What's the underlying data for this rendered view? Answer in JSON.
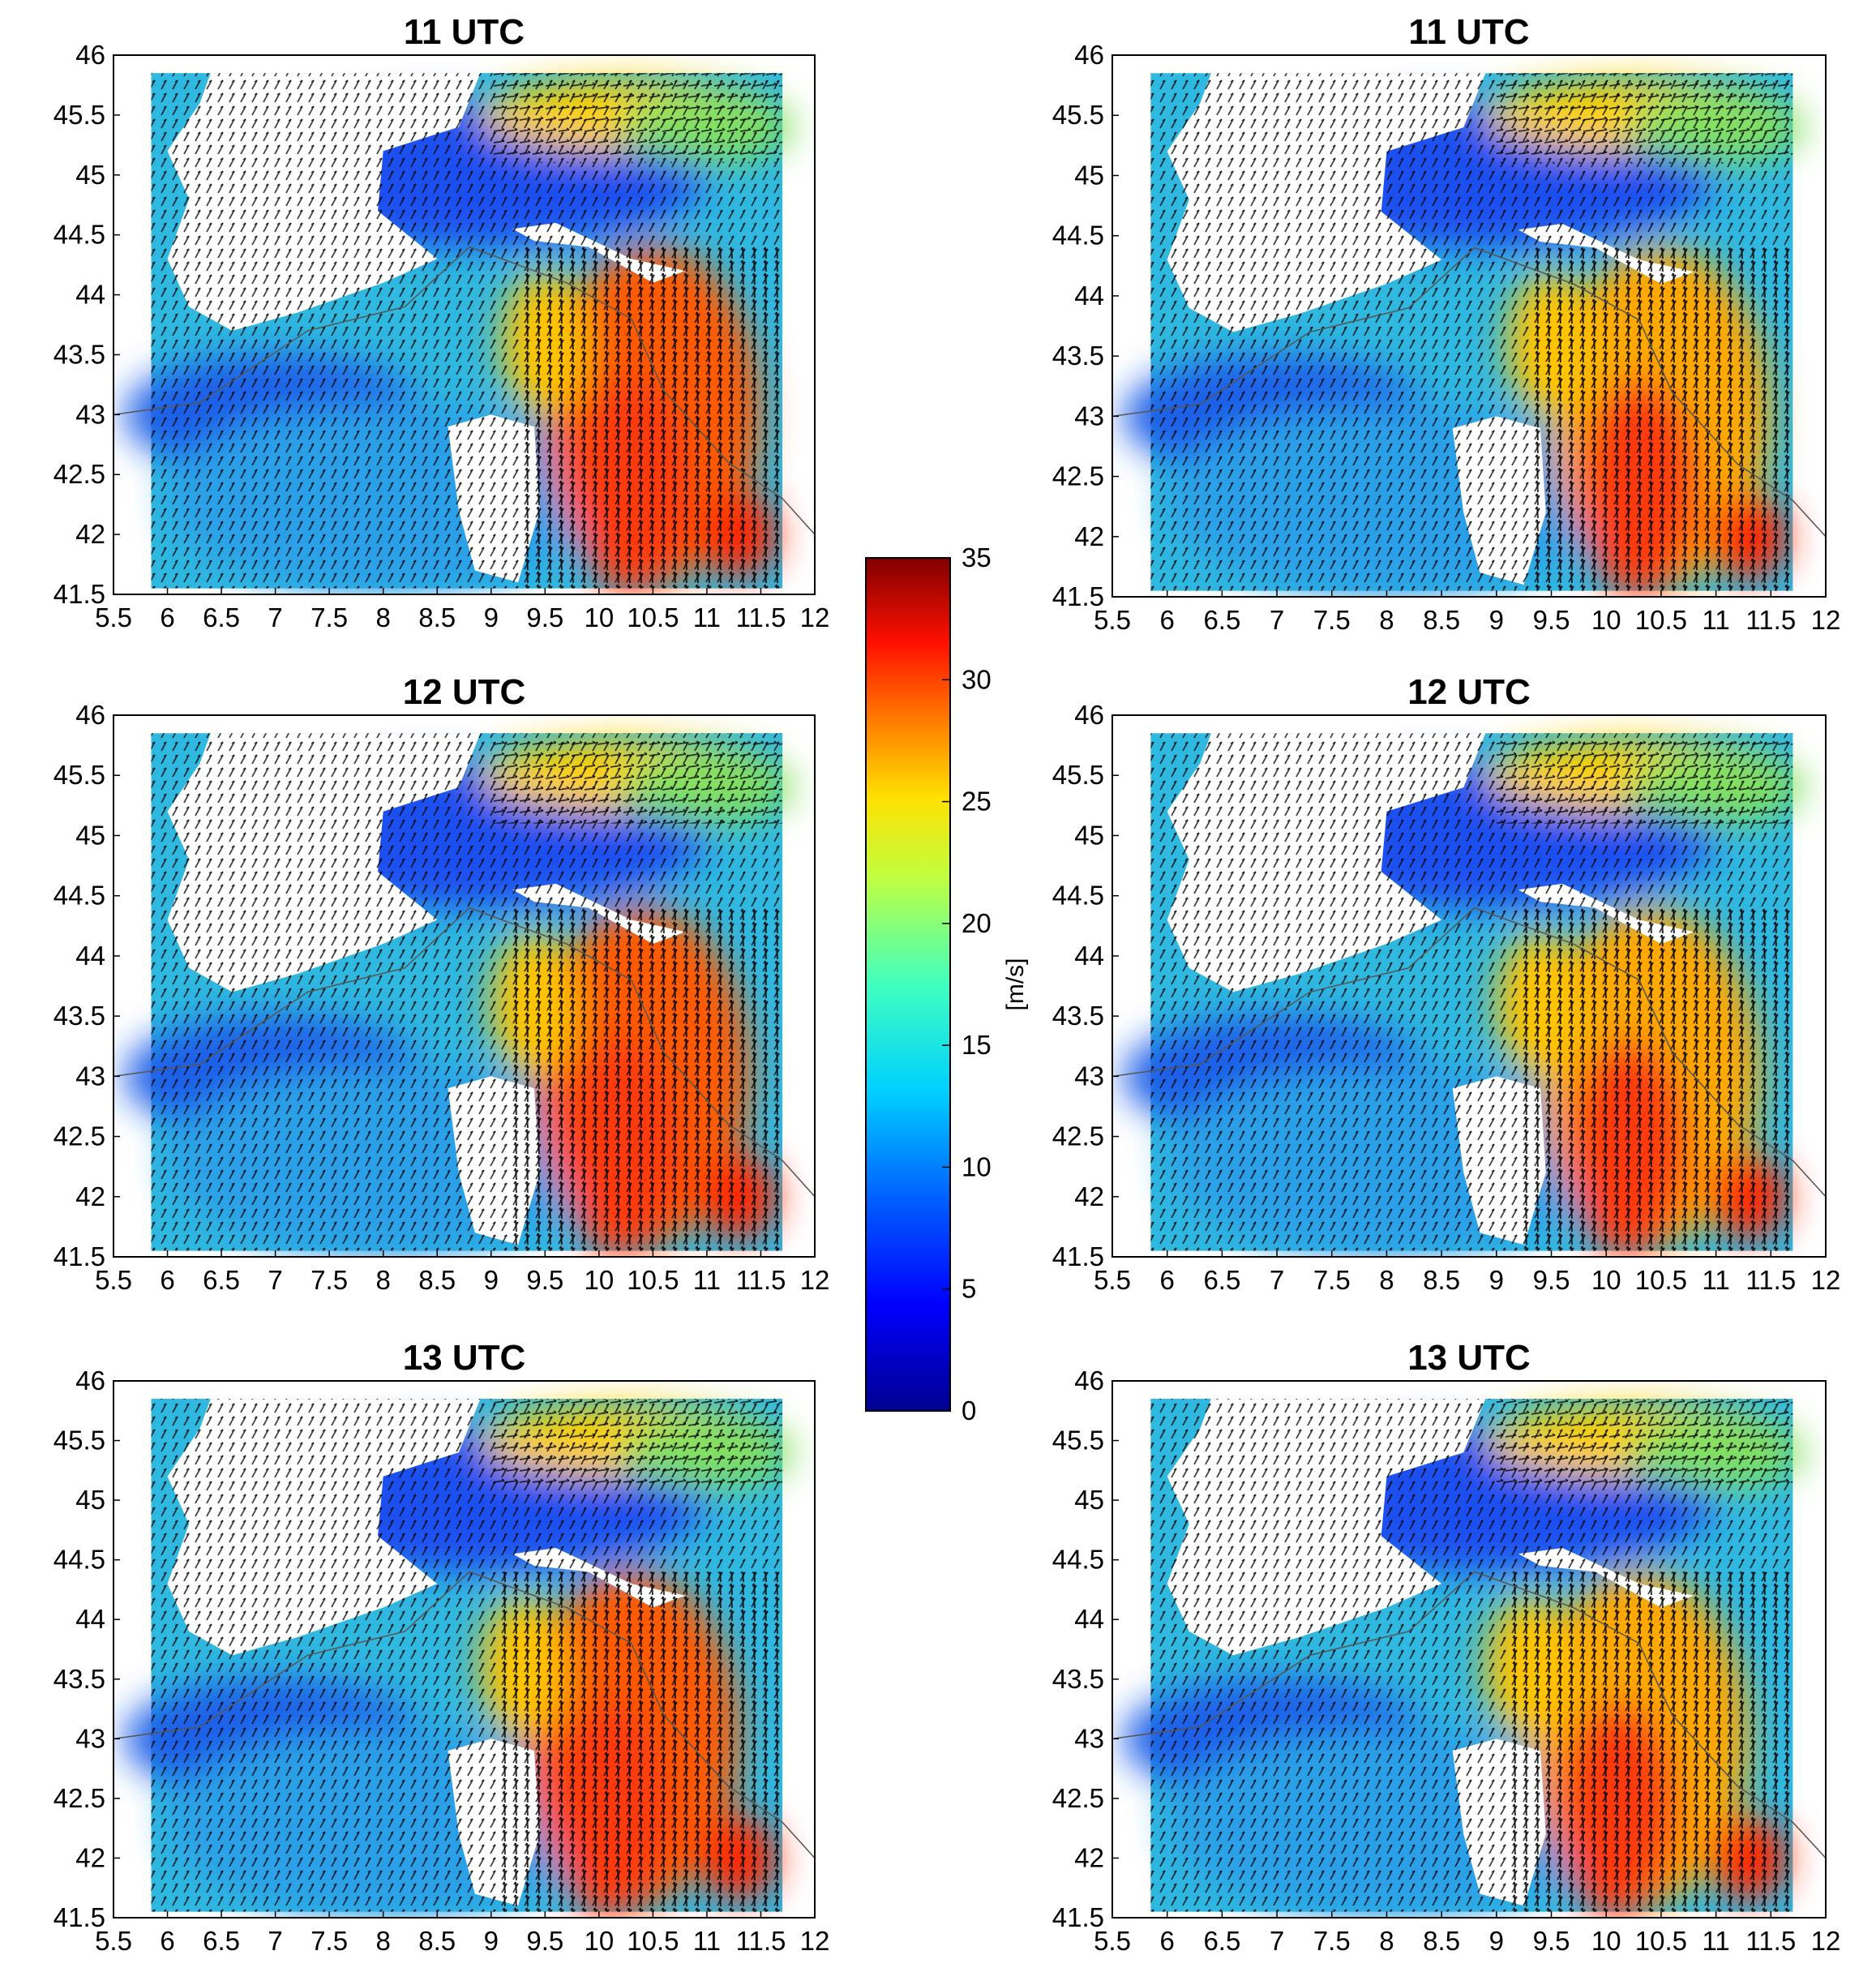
{
  "figure": {
    "colorbar_label": "[m/s]"
  },
  "chart_data": [
    {
      "type": "heatmap",
      "title": "11 UTC",
      "column": "left",
      "xlim": [
        5.5,
        12
      ],
      "ylim": [
        41.5,
        46
      ],
      "xticks": [
        "5.5",
        "6",
        "6.5",
        "7",
        "7.5",
        "8",
        "8.5",
        "9",
        "9.5",
        "10",
        "10.5",
        "11",
        "11.5",
        "12"
      ],
      "yticks": [
        "41.5",
        "42",
        "42.5",
        "43",
        "43.5",
        "44",
        "44.5",
        "45",
        "45.5",
        "46"
      ],
      "field": "wind speed with wind vectors",
      "peak_speed": 28
    },
    {
      "type": "heatmap",
      "title": "11 UTC",
      "column": "right",
      "xlim": [
        5.5,
        12
      ],
      "ylim": [
        41.5,
        46
      ],
      "xticks": [
        "5.5",
        "6",
        "6.5",
        "7",
        "7.5",
        "8",
        "8.5",
        "9",
        "9.5",
        "10",
        "10.5",
        "11",
        "11.5",
        "12"
      ],
      "yticks": [
        "41.5",
        "42",
        "42.5",
        "43",
        "43.5",
        "44",
        "44.5",
        "45",
        "45.5",
        "46"
      ],
      "field": "wind speed with wind vectors",
      "peak_speed": 27
    },
    {
      "type": "heatmap",
      "title": "12 UTC",
      "column": "left",
      "xlim": [
        5.5,
        12
      ],
      "ylim": [
        41.5,
        46
      ],
      "xticks": [
        "5.5",
        "6",
        "6.5",
        "7",
        "7.5",
        "8",
        "8.5",
        "9",
        "9.5",
        "10",
        "10.5",
        "11",
        "11.5",
        "12"
      ],
      "yticks": [
        "41.5",
        "42",
        "42.5",
        "43",
        "43.5",
        "44",
        "44.5",
        "45",
        "45.5",
        "46"
      ],
      "field": "wind speed with wind vectors",
      "peak_speed": 29
    },
    {
      "type": "heatmap",
      "title": "12 UTC",
      "column": "right",
      "xlim": [
        5.5,
        12
      ],
      "ylim": [
        41.5,
        46
      ],
      "xticks": [
        "5.5",
        "6",
        "6.5",
        "7",
        "7.5",
        "8",
        "8.5",
        "9",
        "9.5",
        "10",
        "10.5",
        "11",
        "11.5",
        "12"
      ],
      "yticks": [
        "41.5",
        "42",
        "42.5",
        "43",
        "43.5",
        "44",
        "44.5",
        "45",
        "45.5",
        "46"
      ],
      "field": "wind speed with wind vectors",
      "peak_speed": 27
    },
    {
      "type": "heatmap",
      "title": "13 UTC",
      "column": "left",
      "xlim": [
        5.5,
        12
      ],
      "ylim": [
        41.5,
        46
      ],
      "xticks": [
        "5.5",
        "6",
        "6.5",
        "7",
        "7.5",
        "8",
        "8.5",
        "9",
        "9.5",
        "10",
        "10.5",
        "11",
        "11.5",
        "12"
      ],
      "yticks": [
        "41.5",
        "42",
        "42.5",
        "43",
        "43.5",
        "44",
        "44.5",
        "45",
        "45.5",
        "46"
      ],
      "field": "wind speed with wind vectors",
      "peak_speed": 30
    },
    {
      "type": "heatmap",
      "title": "13 UTC",
      "column": "right",
      "xlim": [
        5.5,
        12
      ],
      "ylim": [
        41.5,
        46
      ],
      "xticks": [
        "5.5",
        "6",
        "6.5",
        "7",
        "7.5",
        "8",
        "8.5",
        "9",
        "9.5",
        "10",
        "10.5",
        "11",
        "11.5",
        "12"
      ],
      "yticks": [
        "41.5",
        "42",
        "42.5",
        "43",
        "43.5",
        "44",
        "44.5",
        "45",
        "45.5",
        "46"
      ],
      "field": "wind speed with wind vectors",
      "peak_speed": 28
    }
  ],
  "colorbar": {
    "range": [
      0,
      35
    ],
    "ticks": [
      "0",
      "5",
      "10",
      "15",
      "20",
      "25",
      "30",
      "35"
    ],
    "label": "[m/s]",
    "colormap": [
      "#00008f",
      "#0000ff",
      "#0080ff",
      "#00ffff",
      "#80ff80",
      "#ffff00",
      "#ff8000",
      "#ff0000",
      "#800000"
    ]
  }
}
